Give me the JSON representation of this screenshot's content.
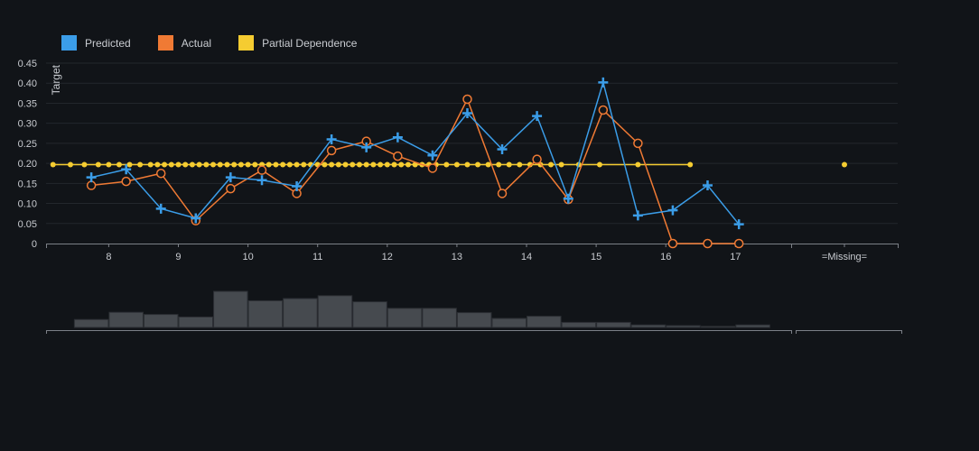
{
  "colors": {
    "predicted": "#3b9de8",
    "actual": "#f07a34",
    "partial_dependence": "#f5cc31",
    "histogram": "#464a4f",
    "grid": "#23272c",
    "axis": "#7c8087",
    "background": "#111418"
  },
  "legend": [
    {
      "key": "predicted",
      "label": "Predicted",
      "color": "#3b9de8"
    },
    {
      "key": "actual",
      "label": "Actual",
      "color": "#f07a34"
    },
    {
      "key": "partial_dependence",
      "label": "Partial Dependence",
      "color": "#f5cc31"
    }
  ],
  "chart_data": {
    "type": "line",
    "ylabel": "Target",
    "ylim": [
      0,
      0.45
    ],
    "yticks": [
      0,
      0.05,
      0.1,
      0.15,
      0.2,
      0.25,
      0.3,
      0.35,
      0.4,
      0.45
    ],
    "ytick_labels": [
      "0",
      "0.05",
      "0.10",
      "0.15",
      "0.20",
      "0.25",
      "0.30",
      "0.35",
      "0.40",
      "0.45"
    ],
    "xlim": [
      7.1,
      17.8
    ],
    "xticks": [
      8,
      9,
      10,
      11,
      12,
      13,
      14,
      15,
      16,
      17
    ],
    "missing_label": "=Missing=",
    "grid": true,
    "legend_position": "top-left",
    "series": [
      {
        "name": "Predicted",
        "marker": "plus",
        "x": [
          7.75,
          8.25,
          8.75,
          9.25,
          9.75,
          10.2,
          10.7,
          11.2,
          11.7,
          12.15,
          12.65,
          13.15,
          13.65,
          14.15,
          14.6,
          15.1,
          15.6,
          16.1,
          16.6,
          17.05
        ],
        "y": [
          0.165,
          0.185,
          0.087,
          0.063,
          0.165,
          0.158,
          0.143,
          0.26,
          0.24,
          0.265,
          0.22,
          0.325,
          0.235,
          0.318,
          0.112,
          0.402,
          0.07,
          0.083,
          0.145,
          0.048
        ]
      },
      {
        "name": "Actual",
        "marker": "circle",
        "x": [
          7.75,
          8.25,
          8.75,
          9.25,
          9.75,
          10.2,
          10.7,
          11.2,
          11.7,
          12.15,
          12.65,
          13.15,
          13.65,
          14.15,
          14.6,
          15.1,
          15.6,
          16.1,
          16.6,
          17.05
        ],
        "y": [
          0.145,
          0.155,
          0.175,
          0.057,
          0.137,
          0.183,
          0.125,
          0.232,
          0.255,
          0.218,
          0.188,
          0.36,
          0.125,
          0.21,
          0.11,
          0.333,
          0.25,
          0,
          0,
          0
        ]
      },
      {
        "name": "Partial Dependence",
        "marker": "dot",
        "y_constant": 0.197,
        "missing_y": 0.197,
        "x": [
          7.2,
          7.45,
          7.65,
          7.85,
          8.0,
          8.15,
          8.3,
          8.45,
          8.6,
          8.7,
          8.8,
          8.9,
          9.0,
          9.1,
          9.2,
          9.3,
          9.4,
          9.5,
          9.6,
          9.7,
          9.8,
          9.9,
          10.0,
          10.1,
          10.2,
          10.3,
          10.4,
          10.5,
          10.6,
          10.7,
          10.8,
          10.9,
          11.0,
          11.1,
          11.2,
          11.3,
          11.4,
          11.5,
          11.6,
          11.7,
          11.8,
          11.9,
          12.0,
          12.1,
          12.2,
          12.3,
          12.4,
          12.5,
          12.6,
          12.7,
          12.85,
          13.0,
          13.15,
          13.3,
          13.45,
          13.6,
          13.75,
          13.9,
          14.05,
          14.2,
          14.35,
          14.5,
          14.75,
          15.05,
          15.6,
          16.35
        ]
      }
    ],
    "histogram": {
      "bin_edges": [
        7.5,
        8.0,
        8.5,
        9.0,
        9.5,
        10.0,
        10.5,
        11.0,
        11.5,
        12.0,
        12.5,
        13.0,
        13.5,
        14.0,
        14.5,
        15.0,
        15.5,
        16.0,
        16.5,
        17.0
      ],
      "counts": [
        0.22,
        0.42,
        0.36,
        0.29,
        1.0,
        0.74,
        0.8,
        0.88,
        0.71,
        0.53,
        0.53,
        0.41,
        0.25,
        0.31,
        0.14,
        0.14,
        0.07,
        0.05,
        0.03,
        0.07
      ],
      "missing_count": 0
    }
  }
}
